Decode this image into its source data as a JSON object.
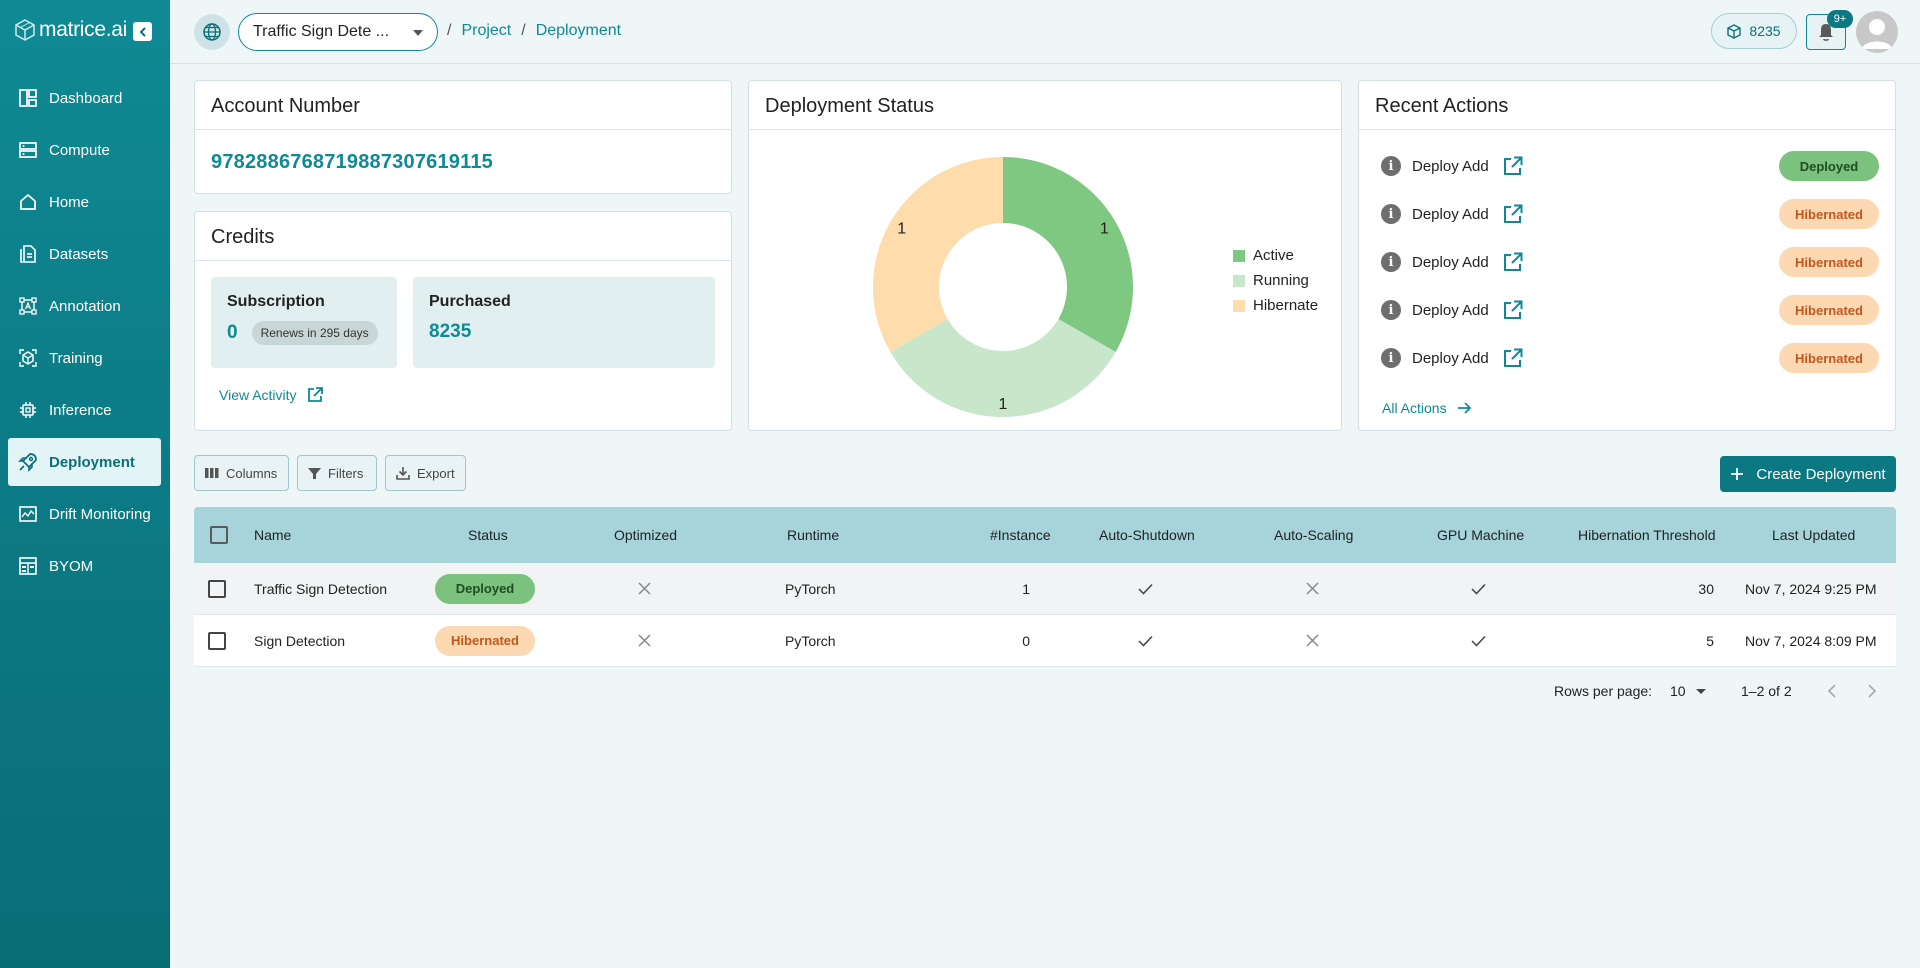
{
  "brand": {
    "logo_text": "matrice.ai"
  },
  "sidebar": {
    "items": [
      {
        "label": "Dashboard",
        "icon": "dashboard-icon"
      },
      {
        "label": "Compute",
        "icon": "server-icon"
      },
      {
        "label": "Home",
        "icon": "home-icon"
      },
      {
        "label": "Datasets",
        "icon": "file-icon"
      },
      {
        "label": "Annotation",
        "icon": "annotation-icon"
      },
      {
        "label": "Training",
        "icon": "cube-icon"
      },
      {
        "label": "Inference",
        "icon": "chip-icon"
      },
      {
        "label": "Deployment",
        "icon": "rocket-icon",
        "active": true
      },
      {
        "label": "Drift Monitoring",
        "icon": "monitor-chart-icon"
      },
      {
        "label": "BYOM",
        "icon": "model-icon"
      }
    ]
  },
  "header": {
    "project_select": "Traffic Sign Dete ...",
    "breadcrumbs": [
      "Project",
      "Deployment"
    ],
    "credits": "8235",
    "notifications_badge": "9+"
  },
  "account": {
    "title": "Account Number",
    "number": "97828867687198873076191 15"
  },
  "credits_card": {
    "title": "Credits",
    "subscription_label": "Subscription",
    "subscription_value": "0",
    "renews": "Renews in 295 days",
    "purchased_label": "Purchased",
    "purchased_value": "8235",
    "view_activity": "View Activity"
  },
  "deployment_status": {
    "title": "Deployment Status",
    "legend": [
      {
        "name": "Active",
        "color": "#7ec882"
      },
      {
        "name": "Running",
        "color": "#c8e6c9"
      },
      {
        "name": "Hibernate",
        "color": "#fedcab"
      }
    ]
  },
  "chart_data": {
    "type": "pie",
    "title": "Deployment Status",
    "categories": [
      "Active",
      "Running",
      "Hibernate"
    ],
    "values": [
      1,
      1,
      1
    ],
    "donut": true,
    "legend_position": "right"
  },
  "recent_actions": {
    "title": "Recent Actions",
    "items": [
      {
        "text": "Deploy Add",
        "status": "Deployed"
      },
      {
        "text": "Deploy Add",
        "status": "Hibernated"
      },
      {
        "text": "Deploy Add",
        "status": "Hibernated"
      },
      {
        "text": "Deploy Add",
        "status": "Hibernated"
      },
      {
        "text": "Deploy Add",
        "status": "Hibernated"
      }
    ],
    "all_actions": "All Actions"
  },
  "toolbar": {
    "columns": "Columns",
    "filters": "Filters",
    "export": "Export",
    "create": "Create Deployment"
  },
  "table": {
    "headers": [
      "Name",
      "Status",
      "Optimized",
      "Runtime",
      "#Instance",
      "Auto-Shutdown",
      "Auto-Scaling",
      "GPU Machine",
      "Hibernation Threshold",
      "Last Updated"
    ],
    "rows": [
      {
        "name": "Traffic Sign Detection",
        "status": "Deployed",
        "optimized": false,
        "runtime": "PyTorch",
        "instance": "1",
        "auto_shutdown": true,
        "auto_scaling": false,
        "gpu": true,
        "threshold": "30",
        "updated": "Nov 7, 2024 9:25 PM"
      },
      {
        "name": "Sign Detection",
        "status": "Hibernated",
        "optimized": false,
        "runtime": "PyTorch",
        "instance": "0",
        "auto_shutdown": true,
        "auto_scaling": false,
        "gpu": true,
        "threshold": "5",
        "updated": "Nov 7, 2024 8:09 PM"
      }
    ]
  },
  "pagination": {
    "rows_per_page_label": "Rows per page:",
    "rows_per_page": "10",
    "range": "1–2 of 2"
  }
}
